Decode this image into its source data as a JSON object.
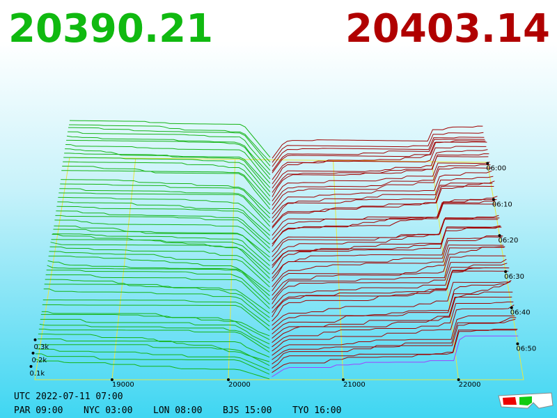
{
  "header": {
    "bid": "20390.21",
    "ask": "20403.14"
  },
  "price_axis": [
    "19000",
    "20000",
    "21000",
    "22000"
  ],
  "depth_axis": [
    "0.3k",
    "0.2k",
    "0.1k"
  ],
  "time_axis": [
    "06:00",
    "06:10",
    "06:20",
    "06:30",
    "06:40",
    "06:50"
  ],
  "footer": {
    "utc": "UTC 2022-07-11 07:00",
    "zones": [
      "PAR 09:00",
      "NYC 03:00",
      "LON 08:00",
      "BJS 15:00",
      "TYO 16:00"
    ]
  }
}
